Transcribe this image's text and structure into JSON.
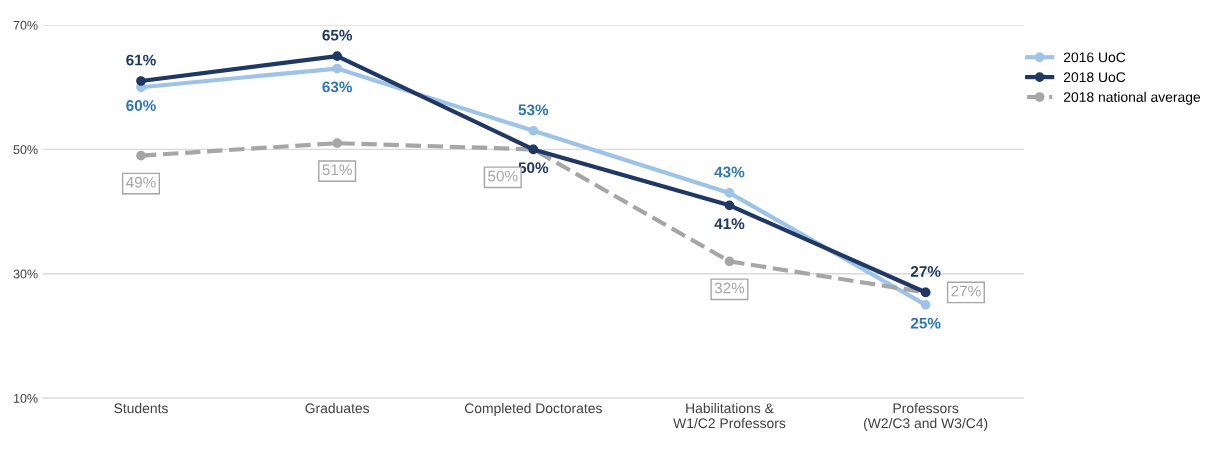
{
  "chart_data": {
    "type": "line",
    "categories": [
      "Students",
      "Graduates",
      "Completed Doctorates",
      "Habilitations &\nW1/C2 Professors",
      "Professors\n(W2/C3 and W3/C4)"
    ],
    "series": [
      {
        "name": "2016 UoC",
        "color": "#9dc3e6",
        "values": [
          60,
          63,
          53,
          43,
          25
        ],
        "value_labels": [
          "60%",
          "63%",
          "53%",
          "43%",
          "25%"
        ]
      },
      {
        "name": "2018 UoC",
        "color": "#1f3864",
        "values": [
          61,
          65,
          50,
          41,
          27
        ],
        "value_labels": [
          "61%",
          "65%",
          "50%",
          "41%",
          "27%"
        ]
      },
      {
        "name": "2018 national average",
        "color": "#a6a6a6",
        "line_style": "dashed",
        "values": [
          49,
          51,
          50,
          32,
          27
        ],
        "value_labels": [
          "49%",
          "51%",
          "50%",
          "32%",
          "27%"
        ]
      }
    ],
    "ylim": [
      10,
      70
    ],
    "yticks": [
      {
        "value": 10,
        "label": "10%"
      },
      {
        "value": 30,
        "label": "30%"
      },
      {
        "value": 50,
        "label": "50%"
      },
      {
        "value": 70,
        "label": "70%"
      }
    ],
    "grid": "y",
    "legend": "top right",
    "marker": "circle",
    "line_style": "solid"
  }
}
